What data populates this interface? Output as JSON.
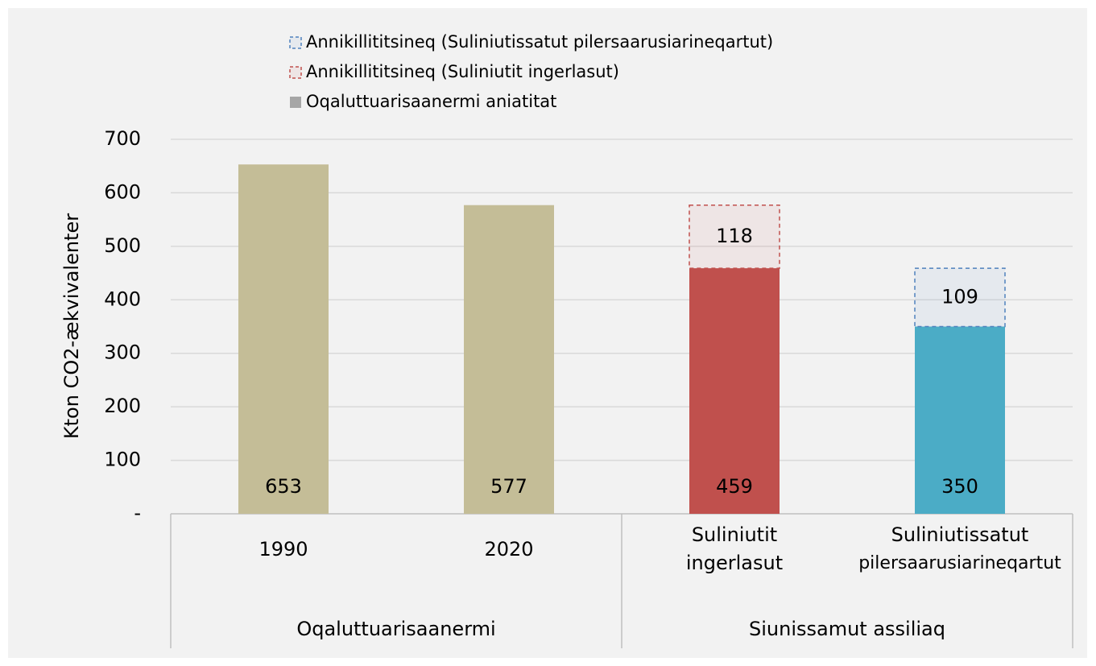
{
  "chart_data": {
    "type": "stacked_bar",
    "y_label": "Kton CO2-ækvivalenter",
    "categories": [
      [
        "1990"
      ],
      [
        "2020"
      ],
      [
        "Suliniutit",
        "ingerlasut"
      ],
      [
        "Suliniutissatut",
        "pilersaarusiarineqartut"
      ]
    ],
    "groups": [
      {
        "name": "Oqaluttuarisaanermi",
        "span": 2
      },
      {
        "name": "Siunissamut assiliaq",
        "span": 2
      }
    ],
    "series": [
      {
        "name": "Oqaluttuarisaanermi aniatitat",
        "color": "#a6a6a6",
        "colors": [
          "#c4bd97",
          "#c4bd97",
          "#c0504d",
          "#4bacc6"
        ],
        "values": [
          653,
          577,
          459,
          350
        ]
      },
      {
        "name": "Annikillititsineq (Suliniutit ingerlasut)",
        "color": "#c0504d",
        "dashed": true,
        "values": [
          null,
          null,
          118,
          null
        ]
      },
      {
        "name": "Annikillititsineq (Suliniutissatut pilersaarusiarineqartut)",
        "color": "#4f81bd",
        "dashed": true,
        "values": [
          null,
          null,
          null,
          109
        ]
      }
    ],
    "ylim": [
      0,
      700
    ],
    "yticks": [
      {
        "value": 0,
        "label": "-"
      },
      100,
      200,
      300,
      400,
      500,
      600,
      700
    ],
    "grid": true
  }
}
